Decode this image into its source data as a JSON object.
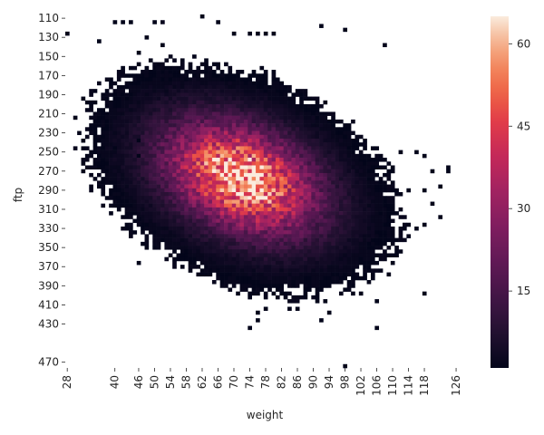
{
  "chart_data": {
    "type": "heatmap",
    "title": "",
    "xlabel": "weight",
    "ylabel": "ftp",
    "x_bin_width": 1,
    "y_bin_height": 4,
    "x_range": [
      28,
      128
    ],
    "y_range": [
      110,
      474
    ],
    "x_ticks": [
      28,
      40,
      46,
      50,
      54,
      58,
      62,
      66,
      70,
      74,
      78,
      82,
      86,
      90,
      94,
      98,
      102,
      106,
      110,
      114,
      118,
      126
    ],
    "y_ticks": [
      110,
      130,
      150,
      170,
      190,
      210,
      230,
      250,
      270,
      290,
      310,
      330,
      350,
      370,
      390,
      410,
      430,
      470
    ],
    "colorbar": {
      "min": 1,
      "max": 65,
      "ticks": [
        15,
        30,
        45,
        60
      ]
    },
    "colormap": "rocket",
    "count_model": {
      "peak_count": 62,
      "peak_weight": 72,
      "peak_ftp": 278,
      "sd_weight": 13,
      "sd_ftp": 40
    },
    "sparse_cells": [
      [
        28,
        126,
        1
      ],
      [
        40,
        114,
        1
      ],
      [
        42,
        114,
        1
      ],
      [
        44,
        114,
        1
      ],
      [
        50,
        114,
        1
      ],
      [
        52,
        114,
        2
      ],
      [
        62,
        108,
        1
      ],
      [
        66,
        114,
        1
      ],
      [
        70,
        126,
        1
      ],
      [
        74,
        126,
        1
      ],
      [
        76,
        126,
        1
      ],
      [
        78,
        126,
        1
      ],
      [
        80,
        126,
        1
      ],
      [
        98,
        122,
        1
      ],
      [
        92,
        118,
        1
      ],
      [
        108,
        138,
        1
      ],
      [
        46,
        146,
        1
      ],
      [
        48,
        130,
        1
      ],
      [
        52,
        138,
        1
      ],
      [
        36,
        134,
        1
      ],
      [
        120,
        270,
        1
      ],
      [
        112,
        250,
        1
      ],
      [
        116,
        250,
        1
      ],
      [
        118,
        254,
        1
      ],
      [
        124,
        266,
        1
      ],
      [
        124,
        270,
        1
      ],
      [
        122,
        286,
        1
      ],
      [
        118,
        290,
        1
      ],
      [
        114,
        290,
        1
      ],
      [
        110,
        282,
        1
      ],
      [
        108,
        302,
        1
      ],
      [
        114,
        326,
        1
      ],
      [
        116,
        330,
        1
      ],
      [
        118,
        326,
        1
      ],
      [
        122,
        318,
        1
      ],
      [
        120,
        304,
        1
      ],
      [
        46,
        320,
        1
      ],
      [
        46,
        366,
        1
      ],
      [
        52,
        342,
        1
      ],
      [
        98,
        474,
        1
      ],
      [
        102,
        398,
        1
      ],
      [
        106,
        406,
        1
      ],
      [
        106,
        434,
        1
      ],
      [
        118,
        398,
        1
      ],
      [
        92,
        426,
        1
      ],
      [
        74,
        434,
        1
      ],
      [
        76,
        418,
        1
      ],
      [
        76,
        426,
        1
      ],
      [
        78,
        414,
        1
      ],
      [
        84,
        414,
        1
      ],
      [
        86,
        414,
        1
      ],
      [
        94,
        418,
        1
      ],
      [
        110,
        366,
        1
      ],
      [
        112,
        354,
        1
      ],
      [
        114,
        338,
        1
      ],
      [
        38,
        218,
        1
      ],
      [
        40,
        246,
        1
      ],
      [
        46,
        238,
        1
      ],
      [
        46,
        254,
        1
      ]
    ]
  }
}
